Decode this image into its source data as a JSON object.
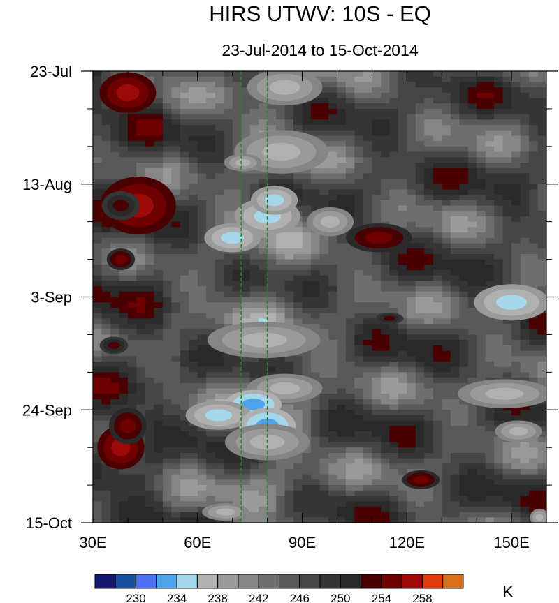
{
  "chart_data": {
    "type": "heatmap",
    "title": "HIRS UTWV: 10S - EQ",
    "subtitle": "23-Jul-2014 to 15-Oct-2014",
    "x_axis": {
      "range": [
        30,
        160
      ],
      "ticks": [
        {
          "value": 30,
          "label": "30E"
        },
        {
          "value": 60,
          "label": "60E"
        },
        {
          "value": 90,
          "label": "90E"
        },
        {
          "value": 120,
          "label": "120E"
        },
        {
          "value": 150,
          "label": "150E"
        }
      ],
      "minor_step": 10
    },
    "y_axis": {
      "range_days": [
        0,
        84
      ],
      "reversed": true,
      "ticks": [
        {
          "value": 0,
          "label": "23-Jul"
        },
        {
          "value": 21,
          "label": "13-Aug"
        },
        {
          "value": 42,
          "label": "3-Sep"
        },
        {
          "value": 63,
          "label": "24-Sep"
        },
        {
          "value": 84,
          "label": "15-Oct"
        }
      ],
      "minor_step": 7
    },
    "reference_lines": [
      {
        "x": 72.5,
        "color": "#1f8a1f",
        "style": "dashed"
      },
      {
        "x": 80,
        "color": "#1f8a1f",
        "style": "dashed"
      }
    ],
    "colorbar": {
      "units": "K",
      "labels": [
        {
          "index": 1,
          "label": "230"
        },
        {
          "index": 3,
          "label": "234"
        },
        {
          "index": 5,
          "label": "238"
        },
        {
          "index": 7,
          "label": "242"
        },
        {
          "index": 9,
          "label": "246"
        },
        {
          "index": 11,
          "label": "250"
        },
        {
          "index": 13,
          "label": "254"
        },
        {
          "index": 15,
          "label": "258"
        }
      ],
      "colors": [
        "#15186e",
        "#1a4f9c",
        "#4f6ff5",
        "#4ea3ea",
        "#a6d6ea",
        "#b0b0b0",
        "#9a9a9a",
        "#858585",
        "#6e6e6e",
        "#595959",
        "#464646",
        "#353535",
        "#2a2a2a",
        "#4a0000",
        "#700000",
        "#9c0a0a",
        "#e23a10",
        "#d86f1a"
      ]
    },
    "anomalies": [
      {
        "x": 40,
        "y": 4,
        "value": 256,
        "rx": 6,
        "ry": 2.8
      },
      {
        "x": 43,
        "y": 25,
        "value": 257,
        "rx": 8,
        "ry": 4
      },
      {
        "x": 38,
        "y": 25,
        "value": 252,
        "rx": 4,
        "ry": 2
      },
      {
        "x": 38,
        "y": 35,
        "value": 255,
        "rx": 3,
        "ry": 1.5
      },
      {
        "x": 38,
        "y": 70,
        "value": 256,
        "rx": 5,
        "ry": 3
      },
      {
        "x": 40,
        "y": 66,
        "value": 254,
        "rx": 4,
        "ry": 2.5
      },
      {
        "x": 36,
        "y": 51,
        "value": 253,
        "rx": 3,
        "ry": 1.2
      },
      {
        "x": 112,
        "y": 31,
        "value": 255,
        "rx": 7,
        "ry": 2
      },
      {
        "x": 124,
        "y": 76,
        "value": 254,
        "rx": 4,
        "ry": 1.3
      },
      {
        "x": 115,
        "y": 46,
        "value": 252,
        "rx": 3,
        "ry": 0.8
      },
      {
        "x": 85,
        "y": 3,
        "value": 236,
        "rx": 8,
        "ry": 2.5
      },
      {
        "x": 84,
        "y": 15,
        "value": 236,
        "rx": 10,
        "ry": 3
      },
      {
        "x": 80,
        "y": 27,
        "value": 235,
        "rx": 7,
        "ry": 2.5
      },
      {
        "x": 70,
        "y": 31,
        "value": 235,
        "rx": 6,
        "ry": 2
      },
      {
        "x": 82,
        "y": 24,
        "value": 234,
        "rx": 5,
        "ry": 2
      },
      {
        "x": 79,
        "y": 50,
        "value": 236,
        "rx": 12,
        "ry": 2.5
      },
      {
        "x": 85,
        "y": 59,
        "value": 236,
        "rx": 8,
        "ry": 2
      },
      {
        "x": 76,
        "y": 62,
        "value": 233,
        "rx": 6,
        "ry": 2
      },
      {
        "x": 66,
        "y": 64,
        "value": 235,
        "rx": 7,
        "ry": 2
      },
      {
        "x": 80,
        "y": 66,
        "value": 232,
        "rx": 6,
        "ry": 2.5
      },
      {
        "x": 80,
        "y": 69,
        "value": 237,
        "rx": 9,
        "ry": 2.5
      },
      {
        "x": 68,
        "y": 82,
        "value": 237,
        "rx": 5,
        "ry": 1.2
      },
      {
        "x": 150,
        "y": 43,
        "value": 234,
        "rx": 8,
        "ry": 2.5
      },
      {
        "x": 148,
        "y": 60,
        "value": 236,
        "rx": 10,
        "ry": 2
      },
      {
        "x": 152,
        "y": 67,
        "value": 237,
        "rx": 5,
        "ry": 1.5
      },
      {
        "x": 73,
        "y": 17,
        "value": 237,
        "rx": 4,
        "ry": 1.2
      },
      {
        "x": 98,
        "y": 28,
        "value": 237,
        "rx": 5,
        "ry": 2
      },
      {
        "x": 158,
        "y": 83,
        "value": 237,
        "rx": 2,
        "ry": 1.2
      }
    ]
  }
}
